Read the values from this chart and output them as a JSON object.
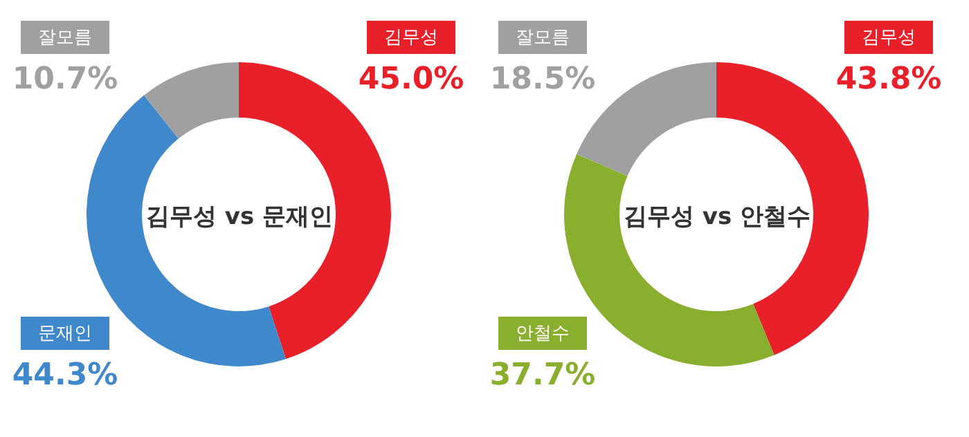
{
  "chart_data": [
    {
      "type": "donut",
      "title": "김무성 vs 문재인",
      "categories": [
        "김무성",
        "문재인",
        "잘모름"
      ],
      "values": [
        45.0,
        44.3,
        10.7
      ],
      "colors": [
        "#e8202a",
        "#3f88cc",
        "#a0a0a0"
      ],
      "value_labels": [
        "45.0%",
        "44.3%",
        "10.7%"
      ]
    },
    {
      "type": "donut",
      "title": "김무성 vs 안철수",
      "categories": [
        "김무성",
        "안철수",
        "잘모름"
      ],
      "values": [
        43.8,
        37.7,
        18.5
      ],
      "colors": [
        "#e8202a",
        "#8aae2e",
        "#a0a0a0"
      ],
      "value_labels": [
        "43.8%",
        "37.7%",
        "18.5%"
      ]
    }
  ]
}
